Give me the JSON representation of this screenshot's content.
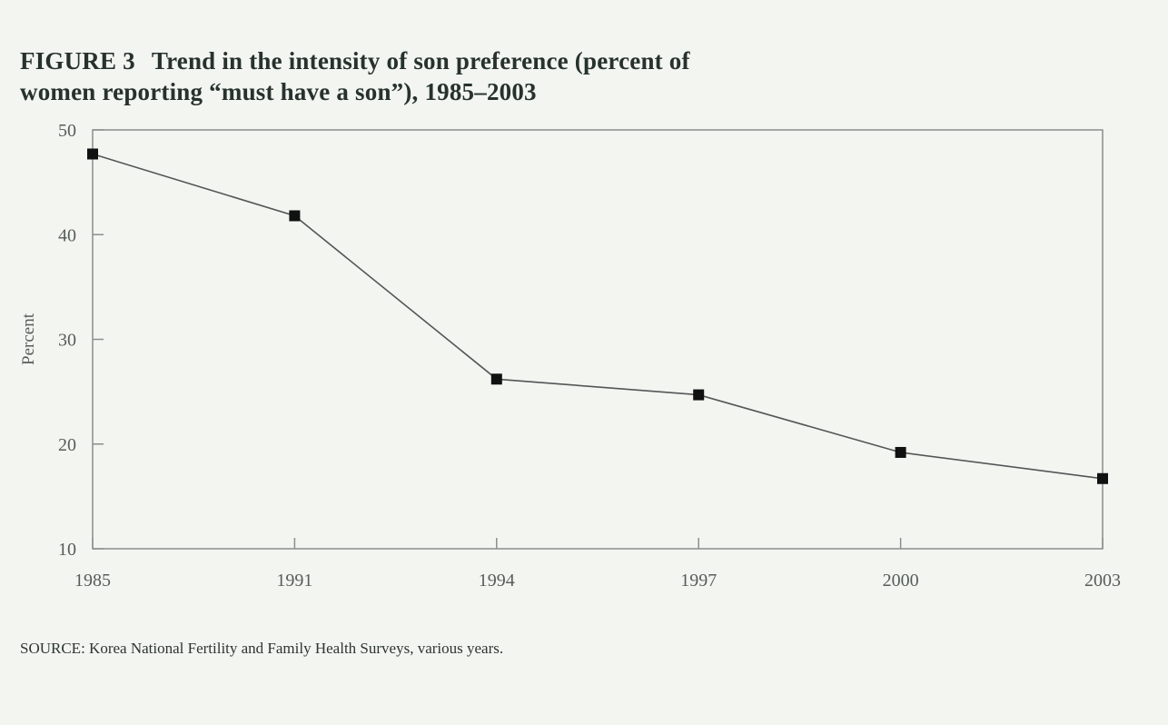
{
  "title": {
    "figure_label": "FIGURE 3",
    "line1": "Trend in the intensity of son preference (percent of",
    "line2": "women reporting “must have a son”), 1985–2003"
  },
  "source": "SOURCE: Korea National Fertility and Family Health Surveys, various years.",
  "chart_data": {
    "type": "line",
    "title": "Trend in the intensity of son preference (percent of women reporting “must have a son”), 1985–2003",
    "xlabel": "",
    "ylabel": "Percent",
    "categories": [
      "1985",
      "1991",
      "1994",
      "1997",
      "2000",
      "2003"
    ],
    "values": [
      47.7,
      41.8,
      26.2,
      24.7,
      19.2,
      16.7
    ],
    "ylim": [
      10,
      50
    ],
    "yticks": [
      "10",
      "20",
      "30",
      "40",
      "50"
    ],
    "grid": false,
    "marker": "square",
    "colors": {
      "line": "#555555",
      "marker": "#111111"
    }
  }
}
